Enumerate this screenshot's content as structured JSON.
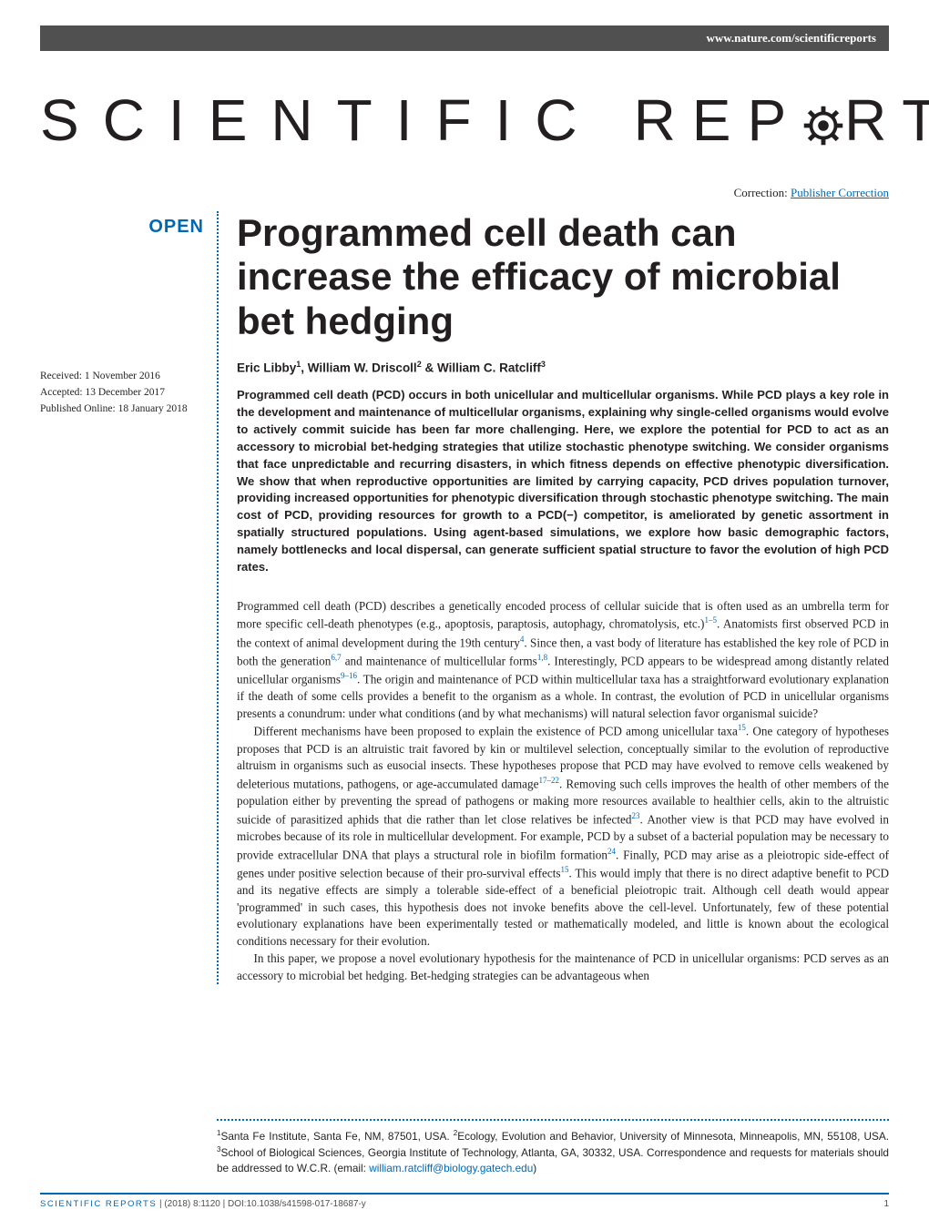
{
  "header": {
    "url": "www.nature.com/scientificreports"
  },
  "logo": {
    "part1": "SCIENTIFIC",
    "part2_left": "REP",
    "part2_right": "RTS",
    "gear_color": "#231f20"
  },
  "correction": {
    "label": "Correction:",
    "link": "Publisher Correction"
  },
  "open_badge": "OPEN",
  "dates": {
    "received": "Received: 1 November 2016",
    "accepted": "Accepted: 13 December 2017",
    "published": "Published Online: 18 January 2018"
  },
  "title": "Programmed cell death can increase the efficacy of microbial bet hedging",
  "authors_html": "Eric Libby<sup>1</sup>, William W. Driscoll<sup>2</sup> & William C. Ratcliff<sup>3</sup>",
  "abstract": "Programmed cell death (PCD) occurs in both unicellular and multicellular organisms. While PCD plays a key role in the development and maintenance of multicellular organisms, explaining why single-celled organisms would evolve to actively commit suicide has been far more challenging. Here, we explore the potential for PCD to act as an accessory to microbial bet-hedging strategies that utilize stochastic phenotype switching. We consider organisms that face unpredictable and recurring disasters, in which fitness depends on effective phenotypic diversification. We show that when reproductive opportunities are limited by carrying capacity, PCD drives population turnover, providing increased opportunities for phenotypic diversification through stochastic phenotype switching. The main cost of PCD, providing resources for growth to a PCD(−) competitor, is ameliorated by genetic assortment in spatially structured populations. Using agent-based simulations, we explore how basic demographic factors, namely bottlenecks and local dispersal, can generate sufficient spatial structure to favor the evolution of high PCD rates.",
  "body": {
    "p1": "Programmed cell death (PCD) describes a genetically encoded process of cellular suicide that is often used as an umbrella term for more specific cell-death phenotypes (e.g., apoptosis, paraptosis, autophagy, chromatolysis, etc.)",
    "p1r1": "1–5",
    "p1b": ". Anatomists first observed PCD in the context of animal development during the 19th century",
    "p1r2": "4",
    "p1c": ". Since then, a vast body of literature has established the key role of PCD in both the generation",
    "p1r3": "6,7",
    "p1d": " and maintenance of multicellular forms",
    "p1r4": "1,8",
    "p1e": ". Interestingly, PCD appears to be widespread among distantly related unicellular organisms",
    "p1r5": "9–16",
    "p1f": ". The origin and maintenance of PCD within multicellular taxa has a straightforward evolutionary explanation if the death of some cells provides a benefit to the organism as a whole. In contrast, the evolution of PCD in unicellular organisms presents a conundrum: under what conditions (and by what mechanisms) will natural selection favor organismal suicide?",
    "p2a": "Different mechanisms have been proposed to explain the existence of PCD among unicellular taxa",
    "p2r1": "15",
    "p2b": ". One category of hypotheses proposes that PCD is an altruistic trait favored by kin or multilevel selection, conceptually similar to the evolution of reproductive altruism in organisms such as eusocial insects. These hypotheses propose that PCD may have evolved to remove cells weakened by deleterious mutations, pathogens, or age-accumulated damage",
    "p2r2": "17–22",
    "p2c": ". Removing such cells improves the health of other members of the population either by preventing the spread of pathogens or making more resources available to healthier cells, akin to the altruistic suicide of parasitized aphids that die rather than let close relatives be infected",
    "p2r3": "23",
    "p2d": ". Another view is that PCD may have evolved in microbes because of its role in multicellular development. For example, PCD by a subset of a bacterial population may be necessary to provide extracellular DNA that plays a structural role in biofilm formation",
    "p2r4": "24",
    "p2e": ". Finally, PCD may arise as a pleiotropic side-effect of genes under positive selection because of their pro-survival effects",
    "p2r5": "15",
    "p2f": ". This would imply that there is no direct adaptive benefit to PCD and its negative effects are simply a tolerable side-effect of a beneficial pleiotropic trait. Although cell death would appear 'programmed' in such cases, this hypothesis does not invoke benefits above the cell-level. Unfortunately, few of these potential evolutionary explanations have been experimentally tested or mathematically modeled, and little is known about the ecological conditions necessary for their evolution.",
    "p3": "In this paper, we propose a novel evolutionary hypothesis for the maintenance of PCD in unicellular organisms: PCD serves as an accessory to microbial bet hedging. Bet-hedging strategies can be advantageous when"
  },
  "affiliations": {
    "text_a": "Santa Fe Institute, Santa Fe, NM, 87501, USA. ",
    "text_b": "Ecology, Evolution and Behavior, University of Minnesota, Minneapolis, MN, 55108, USA. ",
    "text_c": "School of Biological Sciences, Georgia Institute of Technology, Atlanta, GA, 30332, USA. Correspondence and requests for materials should be addressed to W.C.R. (email: ",
    "email": "william.ratcliff@biology.gatech.edu",
    "text_d": ")"
  },
  "footer": {
    "journal": "SCIENTIFIC REPORTS",
    "citation": " | (2018) 8:1120 ",
    "doi": "| DOI:10.1038/s41598-017-18687-y",
    "page": "1"
  },
  "colors": {
    "accent": "#0068b3",
    "header_bg": "#505050",
    "text": "#231f20"
  }
}
